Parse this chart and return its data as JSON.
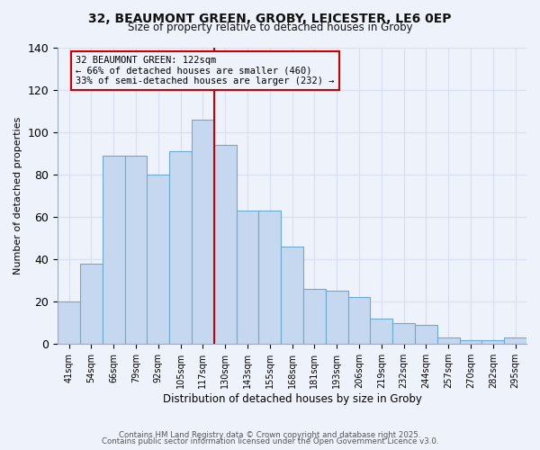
{
  "title1": "32, BEAUMONT GREEN, GROBY, LEICESTER, LE6 0EP",
  "title2": "Size of property relative to detached houses in Groby",
  "xlabel": "Distribution of detached houses by size in Groby",
  "ylabel": "Number of detached properties",
  "bar_labels": [
    "41sqm",
    "54sqm",
    "66sqm",
    "79sqm",
    "92sqm",
    "105sqm",
    "117sqm",
    "130sqm",
    "143sqm",
    "155sqm",
    "168sqm",
    "181sqm",
    "193sqm",
    "206sqm",
    "219sqm",
    "232sqm",
    "244sqm",
    "257sqm",
    "270sqm",
    "282sqm",
    "295sqm"
  ],
  "bar_values": [
    20,
    38,
    89,
    89,
    80,
    91,
    106,
    94,
    63,
    63,
    46,
    26,
    25,
    22,
    12,
    10,
    9,
    3,
    2,
    2,
    3
  ],
  "bar_color": "#c5d8f0",
  "bar_edge_color": "#6aaad4",
  "vline_color": "#cc0000",
  "vline_x_index": 7,
  "annotation_title": "32 BEAUMONT GREEN: 122sqm",
  "annotation_line1": "← 66% of detached houses are smaller (460)",
  "annotation_line2": "33% of semi-detached houses are larger (232) →",
  "annotation_box_color": "#cc0000",
  "ylim": [
    0,
    140
  ],
  "yticks": [
    0,
    20,
    40,
    60,
    80,
    100,
    120,
    140
  ],
  "footer1": "Contains HM Land Registry data © Crown copyright and database right 2025.",
  "footer2": "Contains public sector information licensed under the Open Government Licence v3.0.",
  "bg_color": "#eef2fb",
  "grid_color": "#d8dff0",
  "spine_color": "#a0aac0"
}
